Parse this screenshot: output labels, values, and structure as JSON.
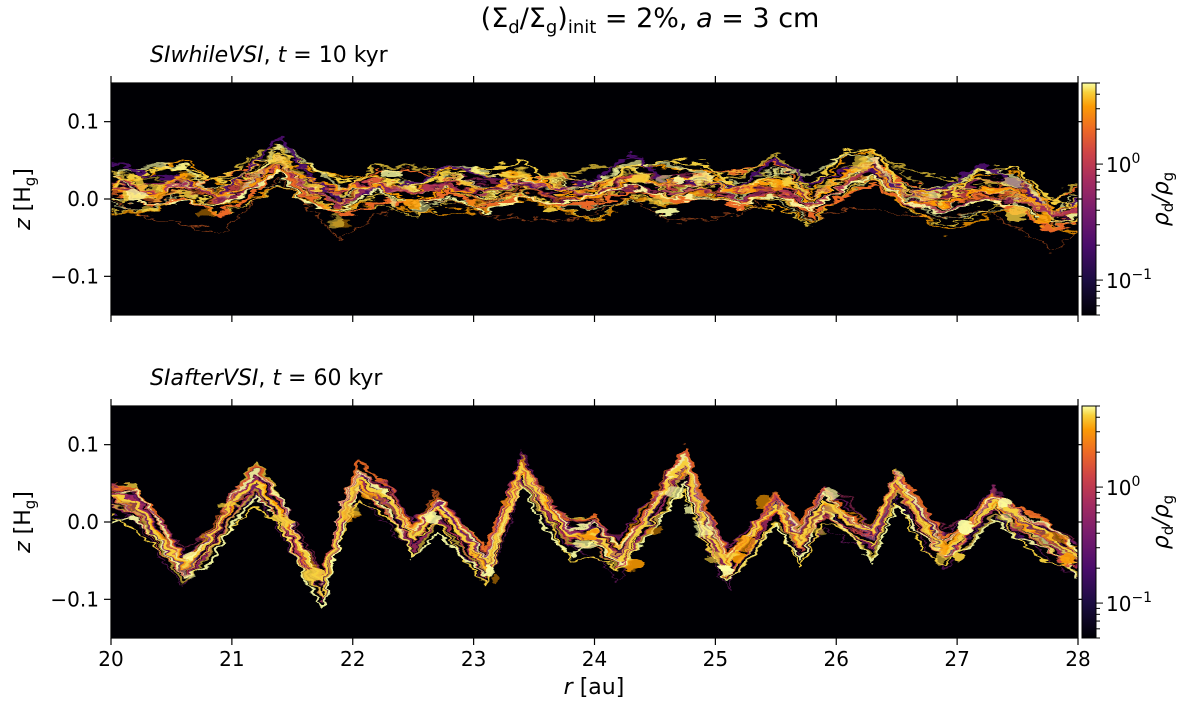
{
  "figure": {
    "title_parts": {
      "open": "(Σ",
      "sub1": "d",
      "slash": "/Σ",
      "sub2": "g",
      "close": ")",
      "sub3": "init",
      "rest1": " = 2%, ",
      "a_sym": "a",
      "rest2": " = 3 cm"
    },
    "xlabel_sym": "r",
    "xlabel_unit": " [au]",
    "ylabel_sym": "z",
    "ylabel_open": " [H",
    "ylabel_sub": "g",
    "ylabel_close": "]"
  },
  "panels": [
    {
      "run_name": "SIwhileVSI",
      "time_text": ", t = 10 kyr",
      "t_sym": "t",
      "t_rest": " = 10 kyr",
      "cbar_label_rho": "ρ",
      "cbar_sub_d": "d",
      "cbar_slash": "/ρ",
      "cbar_sub_g": "g",
      "cbar_tick_high": "10",
      "cbar_tick_high_exp": "0",
      "cbar_tick_low": "10",
      "cbar_tick_low_exp": "−1"
    },
    {
      "run_name": "SIafterVSI",
      "t_sym": "t",
      "t_rest": " = 60 kyr",
      "cbar_label_rho": "ρ",
      "cbar_sub_d": "d",
      "cbar_slash": "/ρ",
      "cbar_sub_g": "g",
      "cbar_tick_high": "10",
      "cbar_tick_high_exp": "0",
      "cbar_tick_low": "10",
      "cbar_tick_low_exp": "−1"
    }
  ],
  "chart_data": [
    {
      "type": "heatmap",
      "title": "SIwhileVSI, t = 10 kyr",
      "xlabel": "r [au]",
      "ylabel": "z [Hg]",
      "xlim": [
        20,
        28
      ],
      "ylim": [
        -0.15,
        0.15
      ],
      "x_ticks": [
        20,
        21,
        22,
        23,
        24,
        25,
        26,
        27,
        28
      ],
      "y_ticks": [
        -0.1,
        0.0,
        0.1
      ],
      "y_tick_labels": [
        "−0.1",
        "0.0",
        "0.1"
      ],
      "colorbar": {
        "label": "ρd/ρg",
        "scale": "log",
        "range": [
          0.05,
          5
        ],
        "ticks": [
          0.1,
          1
        ],
        "colormap": "inferno"
      },
      "background_color": "#000004",
      "layer_centerline": [
        [
          20.0,
          0.01
        ],
        [
          20.3,
          0.0
        ],
        [
          20.6,
          0.01
        ],
        [
          20.9,
          -0.005
        ],
        [
          21.2,
          0.02
        ],
        [
          21.4,
          0.04
        ],
        [
          21.6,
          0.01
        ],
        [
          21.9,
          -0.01
        ],
        [
          22.2,
          0.01
        ],
        [
          22.5,
          0.0
        ],
        [
          22.8,
          0.015
        ],
        [
          23.1,
          0.0
        ],
        [
          23.4,
          0.01
        ],
        [
          23.7,
          0.0
        ],
        [
          24.0,
          0.0
        ],
        [
          24.3,
          0.02
        ],
        [
          24.6,
          0.005
        ],
        [
          24.9,
          0.01
        ],
        [
          25.2,
          0.0
        ],
        [
          25.5,
          0.015
        ],
        [
          25.8,
          -0.01
        ],
        [
          26.1,
          0.02
        ],
        [
          26.3,
          0.03
        ],
        [
          26.6,
          -0.005
        ],
        [
          26.9,
          -0.01
        ],
        [
          27.2,
          0.005
        ],
        [
          27.5,
          0.0
        ],
        [
          27.8,
          -0.03
        ],
        [
          28.0,
          -0.02
        ]
      ],
      "layer_halfwidth": 0.045
    },
    {
      "type": "heatmap",
      "title": "SIafterVSI, t = 60 kyr",
      "xlabel": "r [au]",
      "ylabel": "z [Hg]",
      "xlim": [
        20,
        28
      ],
      "ylim": [
        -0.15,
        0.15
      ],
      "x_ticks": [
        20,
        21,
        22,
        23,
        24,
        25,
        26,
        27,
        28
      ],
      "x_tick_labels": [
        "20",
        "21",
        "22",
        "23",
        "24",
        "25",
        "26",
        "27",
        "28"
      ],
      "y_ticks": [
        -0.1,
        0.0,
        0.1
      ],
      "y_tick_labels": [
        "−0.1",
        "0.0",
        "0.1"
      ],
      "colorbar": {
        "label": "ρd/ρg",
        "scale": "log",
        "range": [
          0.05,
          5
        ],
        "ticks": [
          0.1,
          1
        ],
        "colormap": "inferno"
      },
      "background_color": "#000004",
      "layer_centerline": [
        [
          20.0,
          0.03
        ],
        [
          20.2,
          0.02
        ],
        [
          20.4,
          -0.02
        ],
        [
          20.6,
          -0.06
        ],
        [
          20.8,
          -0.03
        ],
        [
          21.0,
          0.02
        ],
        [
          21.2,
          0.05
        ],
        [
          21.4,
          0.01
        ],
        [
          21.6,
          -0.05
        ],
        [
          21.75,
          -0.08
        ],
        [
          21.9,
          0.0
        ],
        [
          22.05,
          0.05
        ],
        [
          22.3,
          0.02
        ],
        [
          22.5,
          -0.02
        ],
        [
          22.7,
          0.02
        ],
        [
          22.9,
          -0.02
        ],
        [
          23.1,
          -0.06
        ],
        [
          23.3,
          0.02
        ],
        [
          23.4,
          0.07
        ],
        [
          23.6,
          0.02
        ],
        [
          23.8,
          -0.02
        ],
        [
          24.0,
          -0.02
        ],
        [
          24.2,
          -0.05
        ],
        [
          24.4,
          0.0
        ],
        [
          24.6,
          0.04
        ],
        [
          24.75,
          0.07
        ],
        [
          24.9,
          0.0
        ],
        [
          25.1,
          -0.06
        ],
        [
          25.3,
          -0.02
        ],
        [
          25.5,
          0.02
        ],
        [
          25.7,
          -0.03
        ],
        [
          25.9,
          0.02
        ],
        [
          26.1,
          0.0
        ],
        [
          26.3,
          -0.02
        ],
        [
          26.5,
          0.05
        ],
        [
          26.7,
          0.0
        ],
        [
          26.9,
          -0.04
        ],
        [
          27.1,
          -0.01
        ],
        [
          27.3,
          0.03
        ],
        [
          27.5,
          0.0
        ],
        [
          27.7,
          -0.02
        ],
        [
          27.9,
          -0.04
        ],
        [
          28.0,
          -0.05
        ]
      ],
      "layer_halfwidth": 0.03
    }
  ]
}
